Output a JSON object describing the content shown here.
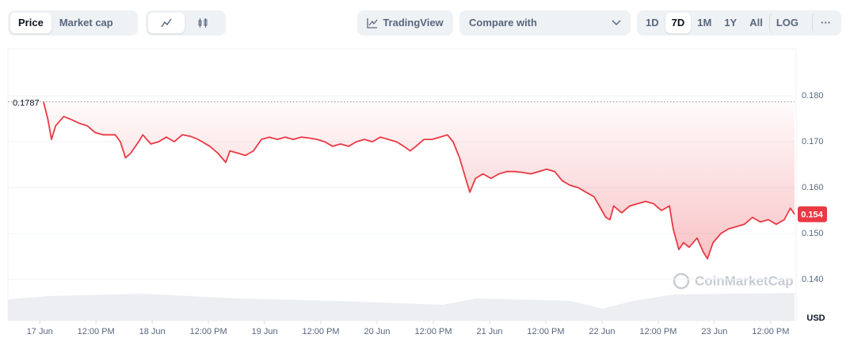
{
  "toolbar": {
    "modes": [
      "Price",
      "Market cap"
    ],
    "tradingview": "TradingView",
    "compare": "Compare with",
    "ranges": [
      "1D",
      "7D",
      "1M",
      "1Y",
      "All",
      "LOG"
    ],
    "more": "···"
  },
  "chart_data": {
    "type": "line",
    "color": "#ea3943",
    "x": [
      0.8,
      1.7,
      2.5,
      3.4,
      5.1,
      6.8,
      8.5,
      10.1,
      11.8,
      13.5,
      16.1,
      17.2,
      18.3,
      19.4,
      21.1,
      22.0,
      23.7,
      25.4,
      27.0,
      28.7,
      30.4,
      32.1,
      33.8,
      36.3,
      38.0,
      39.7,
      40.6,
      42.3,
      43.9,
      45.6,
      47.3,
      49.0,
      50.7,
      52.4,
      54.1,
      55.8,
      57.5,
      59.2,
      60.8,
      62.5,
      64.2,
      65.9,
      67.6,
      69.3,
      71.0,
      72.7,
      74.4,
      76.1,
      77.7,
      79.1,
      80.3,
      82.0,
      83.7,
      85.4,
      87.0,
      88.2,
      89.6,
      90.9,
      91.8,
      93.0,
      94.6,
      96.3,
      98.0,
      99.7,
      101.4,
      103.1,
      104.8,
      106.5,
      108.2,
      109.9,
      111.5,
      113.2,
      114.9,
      116.6,
      118.3,
      119.7,
      120.8,
      121.7,
      122.5,
      124.2,
      125.9,
      127.6,
      129.3,
      131.0,
      132.7,
      134.4,
      135.2,
      136.4,
      137.4,
      138.6,
      140.3,
      141.6,
      142.5,
      143.7,
      145.4,
      147.0,
      148.7,
      150.4,
      152.1,
      153.8,
      155.5,
      157.2,
      158.9,
      160.2,
      161.1
    ],
    "values": [
      0.1787,
      0.175,
      0.1705,
      0.1735,
      0.1755,
      0.1748,
      0.174,
      0.1735,
      0.172,
      0.1715,
      0.1715,
      0.17,
      0.1665,
      0.1675,
      0.17,
      0.1715,
      0.1695,
      0.17,
      0.171,
      0.17,
      0.1715,
      0.1712,
      0.1705,
      0.169,
      0.1675,
      0.1655,
      0.168,
      0.1675,
      0.167,
      0.168,
      0.1705,
      0.171,
      0.1705,
      0.171,
      0.1705,
      0.171,
      0.1708,
      0.1705,
      0.17,
      0.169,
      0.1695,
      0.169,
      0.17,
      0.1705,
      0.17,
      0.171,
      0.1705,
      0.17,
      0.169,
      0.168,
      0.169,
      0.1705,
      0.1705,
      0.171,
      0.1715,
      0.17,
      0.1665,
      0.162,
      0.159,
      0.162,
      0.163,
      0.162,
      0.163,
      0.1635,
      0.1635,
      0.1633,
      0.163,
      0.1635,
      0.164,
      0.1635,
      0.1615,
      0.1605,
      0.16,
      0.159,
      0.158,
      0.1555,
      0.1535,
      0.153,
      0.156,
      0.1545,
      0.156,
      0.1565,
      0.157,
      0.1565,
      0.155,
      0.156,
      0.151,
      0.1465,
      0.148,
      0.147,
      0.149,
      0.146,
      0.1445,
      0.148,
      0.15,
      0.151,
      0.1515,
      0.152,
      0.1535,
      0.1525,
      0.153,
      0.152,
      0.153,
      0.1555,
      0.1542
    ],
    "xlim": [
      -6.8,
      161.1
    ],
    "ylim": [
      0.131,
      0.1902
    ],
    "xticks": [
      {
        "value": 0,
        "label": "17 Jun"
      },
      {
        "value": 12,
        "label": "12:00 PM"
      },
      {
        "value": 24,
        "label": "18 Jun"
      },
      {
        "value": 36,
        "label": "12:00 PM"
      },
      {
        "value": 48,
        "label": "19 Jun"
      },
      {
        "value": 60,
        "label": "12:00 PM"
      },
      {
        "value": 72,
        "label": "20 Jun"
      },
      {
        "value": 84,
        "label": "12:00 PM"
      },
      {
        "value": 96,
        "label": "21 Jun"
      },
      {
        "value": 108,
        "label": "12:00 PM"
      },
      {
        "value": 120,
        "label": "22 Jun"
      },
      {
        "value": 132,
        "label": "12:00 PM"
      },
      {
        "value": 144,
        "label": "23 Jun"
      },
      {
        "value": 156,
        "label": "12:00 PM"
      }
    ],
    "yticks": [
      {
        "value": 0.14,
        "label": "0.140"
      },
      {
        "value": 0.15,
        "label": "0.150"
      },
      {
        "value": 0.16,
        "label": "0.160"
      },
      {
        "value": 0.17,
        "label": "0.170"
      },
      {
        "value": 0.18,
        "label": "0.180"
      }
    ],
    "reference_line": {
      "value": 0.1787,
      "label": "0.1787"
    },
    "last_label": {
      "value": 0.1542,
      "label": "0.154"
    },
    "y_unit": "USD",
    "watermark": "CoinMarketCap",
    "grid": true
  }
}
